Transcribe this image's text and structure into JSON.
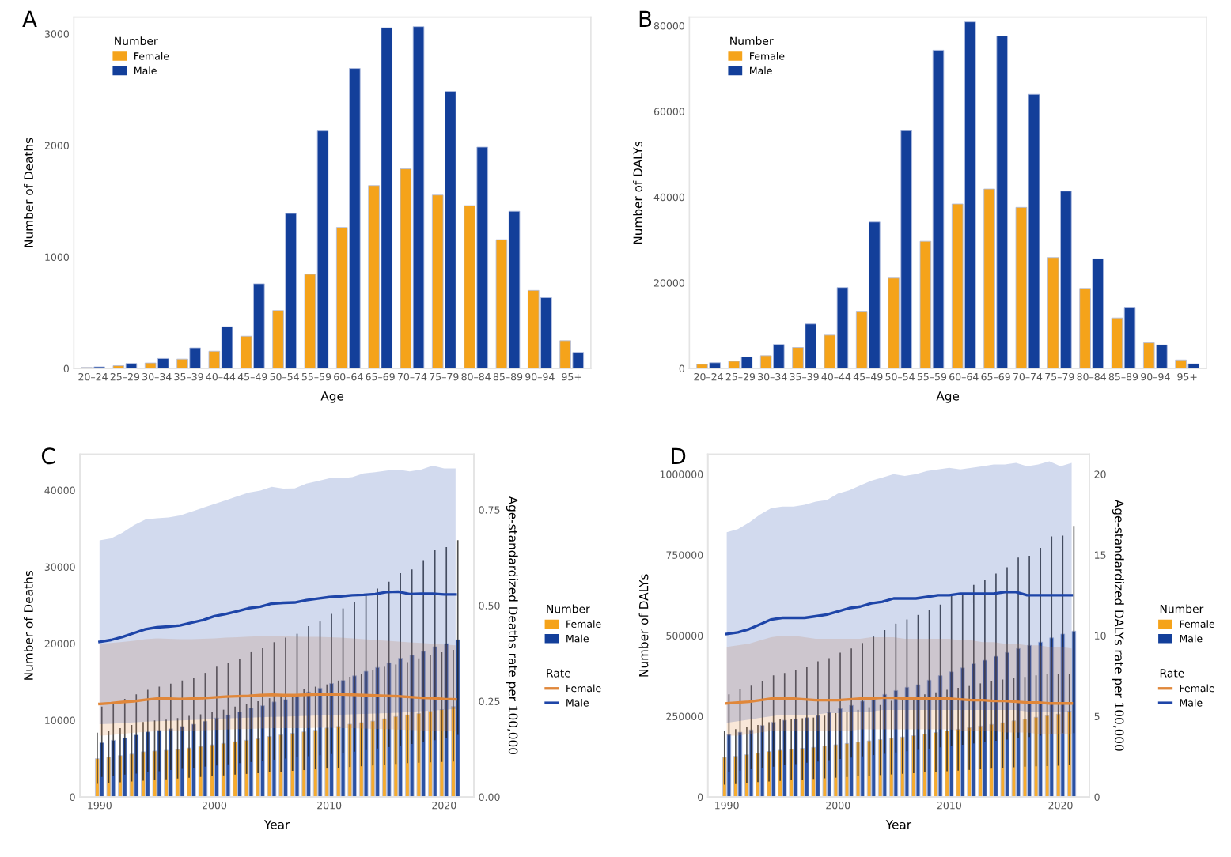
{
  "chart_data": [
    {
      "type": "bar",
      "title": "A",
      "xlabel": "Age",
      "ylabel": "Number of Deaths",
      "legend": "top left",
      "legend_title": "Number",
      "categories": [
        "20–24",
        "25–29",
        "30–34",
        "35–39",
        "40–44",
        "45–49",
        "50–54",
        "55–59",
        "60–64",
        "65–69",
        "70–74",
        "75–79",
        "80–84",
        "85–89",
        "90–94",
        "95+"
      ],
      "ylim": [
        0,
        3150
      ],
      "yticks": [
        0,
        1000,
        2000,
        3000
      ],
      "series": [
        {
          "name": "Female",
          "color": "#f5a31a",
          "values": [
            10,
            25,
            50,
            85,
            155,
            290,
            520,
            845,
            1265,
            1640,
            1790,
            1555,
            1460,
            1155,
            700,
            250
          ]
        },
        {
          "name": "Male",
          "color": "#133f9a",
          "values": [
            15,
            45,
            90,
            185,
            375,
            760,
            1390,
            2130,
            2690,
            3055,
            3065,
            2485,
            1985,
            1410,
            635,
            145
          ]
        }
      ]
    },
    {
      "type": "bar",
      "title": "B",
      "xlabel": "Age",
      "ylabel": "Number of DALYs",
      "legend": "top left",
      "legend_title": "Number",
      "categories": [
        "20–24",
        "25–29",
        "30–34",
        "35–39",
        "40–44",
        "45–49",
        "50–54",
        "55–59",
        "60–64",
        "65–69",
        "70–74",
        "75–79",
        "80–84",
        "85–89",
        "90–94",
        "95+"
      ],
      "ylim": [
        0,
        82000
      ],
      "yticks": [
        0,
        20000,
        40000,
        60000,
        80000
      ],
      "series": [
        {
          "name": "Female",
          "color": "#f5a31a",
          "values": [
            1000,
            1700,
            3000,
            4900,
            7800,
            13200,
            21100,
            29700,
            38400,
            41900,
            37600,
            25900,
            18700,
            11800,
            6000,
            2000
          ]
        },
        {
          "name": "Male",
          "color": "#133f9a",
          "values": [
            1350,
            2700,
            5600,
            10400,
            18900,
            34200,
            55500,
            74300,
            80900,
            77600,
            64000,
            41400,
            25600,
            14300,
            5500,
            1100
          ]
        }
      ]
    },
    {
      "type": "bar",
      "title": "C",
      "xlabel": "Year",
      "ylabel": "Number of Deaths",
      "y2label": "Age-standardized Deaths rate per 100,000",
      "legend": "right",
      "legend_title": "Number",
      "annotations": [
        "Rate"
      ],
      "x": [
        1990,
        1991,
        1992,
        1993,
        1994,
        1995,
        1996,
        1997,
        1998,
        1999,
        2000,
        2001,
        2002,
        2003,
        2004,
        2005,
        2006,
        2007,
        2008,
        2009,
        2010,
        2011,
        2012,
        2013,
        2014,
        2015,
        2016,
        2017,
        2018,
        2019,
        2020,
        2021
      ],
      "xlim": [
        1988.3,
        2022.6
      ],
      "xticks": [
        1990,
        2000,
        2010,
        2020
      ],
      "ylim": [
        0,
        44700
      ],
      "yticks": [
        0,
        10000,
        20000,
        30000,
        40000
      ],
      "y2lim": [
        0,
        0.895
      ],
      "y2ticks": [
        {
          "value": 0,
          "label": "0.00"
        },
        {
          "value": 0.25,
          "label": "0.25"
        },
        {
          "value": 0.5,
          "label": "0.50"
        },
        {
          "value": 0.75,
          "label": "0.75"
        }
      ],
      "series": [
        {
          "name": "Female",
          "color": "#f5a31a",
          "values": [
            5000,
            5200,
            5400,
            5600,
            5900,
            6000,
            6100,
            6200,
            6400,
            6600,
            6800,
            7000,
            7200,
            7400,
            7600,
            7900,
            8100,
            8300,
            8500,
            8700,
            9000,
            9200,
            9500,
            9700,
            9900,
            10200,
            10500,
            10700,
            10900,
            11200,
            11400,
            11800
          ],
          "errors": [
            [
              1800,
              8300
            ],
            [
              1900,
              8500
            ],
            [
              2000,
              8900
            ],
            [
              2100,
              9300
            ],
            [
              2200,
              9700
            ],
            [
              2300,
              9900
            ],
            [
              2400,
              10000
            ],
            [
              2500,
              10200
            ],
            [
              2600,
              10500
            ],
            [
              2700,
              10700
            ],
            [
              2800,
              11000
            ],
            [
              2900,
              11300
            ],
            [
              3000,
              11700
            ],
            [
              3100,
              12000
            ],
            [
              3200,
              12400
            ],
            [
              3300,
              12800
            ],
            [
              3400,
              13100
            ],
            [
              3500,
              13300
            ],
            [
              3600,
              14000
            ],
            [
              3700,
              14300
            ],
            [
              3800,
              14600
            ],
            [
              3900,
              15100
            ],
            [
              4000,
              15600
            ],
            [
              4100,
              16000
            ],
            [
              4200,
              16500
            ],
            [
              4300,
              16900
            ],
            [
              4400,
              17200
            ],
            [
              4500,
              17500
            ],
            [
              4550,
              18000
            ],
            [
              4600,
              18400
            ],
            [
              4650,
              18800
            ],
            [
              4700,
              19100
            ]
          ]
        },
        {
          "name": "Male",
          "color": "#133f9a",
          "values": [
            7100,
            7400,
            7700,
            8100,
            8500,
            8700,
            8900,
            9200,
            9500,
            9900,
            10300,
            10700,
            11100,
            11600,
            11900,
            12400,
            12700,
            13200,
            13700,
            14200,
            14800,
            15200,
            15800,
            16400,
            16900,
            17500,
            18100,
            18500,
            19000,
            19600,
            20000,
            20500
          ],
          "errors": [
            [
              2700,
              11700
            ],
            [
              2850,
              12200
            ],
            [
              3000,
              12700
            ],
            [
              3150,
              13300
            ],
            [
              3300,
              13900
            ],
            [
              3450,
              14300
            ],
            [
              3600,
              14700
            ],
            [
              3750,
              15100
            ],
            [
              3900,
              15500
            ],
            [
              4050,
              16100
            ],
            [
              4200,
              16900
            ],
            [
              4350,
              17400
            ],
            [
              4500,
              17900
            ],
            [
              4650,
              18800
            ],
            [
              4800,
              19300
            ],
            [
              4950,
              20100
            ],
            [
              5100,
              20700
            ],
            [
              5250,
              21200
            ],
            [
              5400,
              22200
            ],
            [
              5550,
              22800
            ],
            [
              5700,
              23800
            ],
            [
              5850,
              24500
            ],
            [
              6000,
              25300
            ],
            [
              6200,
              26300
            ],
            [
              6400,
              27100
            ],
            [
              6600,
              28000
            ],
            [
              6800,
              29100
            ],
            [
              7000,
              29600
            ],
            [
              7200,
              30800
            ],
            [
              7500,
              32100
            ],
            [
              7800,
              32500
            ],
            [
              8200,
              33400
            ]
          ]
        },
        {
          "name": "Female",
          "type": "line",
          "axis": "y2",
          "color": "#e0873a",
          "values": [
            0.243,
            0.245,
            0.248,
            0.25,
            0.254,
            0.257,
            0.257,
            0.256,
            0.257,
            0.258,
            0.26,
            0.262,
            0.263,
            0.264,
            0.266,
            0.267,
            0.266,
            0.266,
            0.267,
            0.268,
            0.268,
            0.268,
            0.267,
            0.266,
            0.265,
            0.264,
            0.263,
            0.261,
            0.259,
            0.258,
            0.256,
            0.255
          ],
          "lower": [
            0.16,
            0.162,
            0.165,
            0.168,
            0.17,
            0.172,
            0.172,
            0.172,
            0.173,
            0.174,
            0.175,
            0.176,
            0.177,
            0.178,
            0.179,
            0.18,
            0.18,
            0.18,
            0.18,
            0.181,
            0.181,
            0.18,
            0.18,
            0.179,
            0.178,
            0.177,
            0.176,
            0.175,
            0.174,
            0.173,
            0.172,
            0.171
          ],
          "upper": [
            0.4,
            0.402,
            0.405,
            0.408,
            0.412,
            0.414,
            0.413,
            0.412,
            0.412,
            0.413,
            0.414,
            0.416,
            0.417,
            0.419,
            0.42,
            0.421,
            0.42,
            0.419,
            0.418,
            0.418,
            0.417,
            0.416,
            0.414,
            0.412,
            0.41,
            0.408,
            0.406,
            0.404,
            0.402,
            0.4,
            0.398,
            0.396
          ]
        },
        {
          "name": "Male",
          "type": "line",
          "axis": "y2",
          "color": "#1e45a8",
          "values": [
            0.405,
            0.41,
            0.418,
            0.428,
            0.438,
            0.443,
            0.445,
            0.448,
            0.455,
            0.462,
            0.472,
            0.478,
            0.485,
            0.493,
            0.497,
            0.505,
            0.507,
            0.508,
            0.514,
            0.518,
            0.522,
            0.524,
            0.527,
            0.528,
            0.53,
            0.535,
            0.536,
            0.53,
            0.531,
            0.531,
            0.529,
            0.529
          ],
          "lower": [
            0.19,
            0.191,
            0.193,
            0.195,
            0.197,
            0.198,
            0.199,
            0.2,
            0.201,
            0.202,
            0.203,
            0.205,
            0.206,
            0.207,
            0.208,
            0.209,
            0.21,
            0.211,
            0.212,
            0.213,
            0.214,
            0.215,
            0.216,
            0.217,
            0.218,
            0.219,
            0.22,
            0.222,
            0.224,
            0.226,
            0.228,
            0.23
          ],
          "upper": [
            0.67,
            0.675,
            0.69,
            0.71,
            0.725,
            0.728,
            0.73,
            0.735,
            0.745,
            0.755,
            0.765,
            0.775,
            0.785,
            0.795,
            0.8,
            0.81,
            0.805,
            0.806,
            0.818,
            0.825,
            0.832,
            0.832,
            0.835,
            0.845,
            0.848,
            0.852,
            0.855,
            0.85,
            0.855,
            0.865,
            0.858,
            0.858
          ]
        }
      ]
    },
    {
      "type": "bar",
      "title": "D",
      "xlabel": "Year",
      "ylabel": "Number of DALYs",
      "y2label": "Age-standardized DALYs rate per 100,000",
      "legend": "right",
      "legend_title": "Number",
      "annotations": [
        "Rate"
      ],
      "x": [
        1990,
        1991,
        1992,
        1993,
        1994,
        1995,
        1996,
        1997,
        1998,
        1999,
        2000,
        2001,
        2002,
        2003,
        2004,
        2005,
        2006,
        2007,
        2008,
        2009,
        2010,
        2011,
        2012,
        2013,
        2014,
        2015,
        2016,
        2017,
        2018,
        2019,
        2020,
        2021
      ],
      "xlim": [
        1988.3,
        2022.6
      ],
      "xticks": [
        1990,
        2000,
        2010,
        2020
      ],
      "ylim": [
        0,
        1062000
      ],
      "yticks": [
        0,
        250000,
        500000,
        750000,
        1000000
      ],
      "y2lim": [
        0,
        21.24
      ],
      "y2ticks": [
        0,
        5,
        10,
        15,
        20
      ],
      "series": [
        {
          "name": "Female",
          "color": "#f5a31a",
          "values": [
            123000,
            126000,
            131000,
            136000,
            141000,
            145000,
            148000,
            151000,
            154000,
            158000,
            162000,
            166000,
            170000,
            174000,
            178000,
            182000,
            186000,
            190000,
            195000,
            200000,
            205000,
            210000,
            215000,
            220000,
            225000,
            230000,
            236000,
            241000,
            247000,
            252000,
            257000,
            266000
          ],
          "errors": [
            [
              40000,
              202000
            ],
            [
              42000,
              208000
            ],
            [
              45000,
              214000
            ],
            [
              48000,
              221000
            ],
            [
              50000,
              230000
            ],
            [
              52000,
              238000
            ],
            [
              54000,
              241000
            ],
            [
              56000,
              242000
            ],
            [
              58000,
              244000
            ],
            [
              60000,
              250000
            ],
            [
              62000,
              258000
            ],
            [
              64000,
              262000
            ],
            [
              66000,
              268000
            ],
            [
              68000,
              276000
            ],
            [
              70000,
              283000
            ],
            [
              72000,
              296000
            ],
            [
              74000,
              302000
            ],
            [
              76000,
              309000
            ],
            [
              78000,
              316000
            ],
            [
              80000,
              322000
            ],
            [
              82000,
              330000
            ],
            [
              84000,
              336000
            ],
            [
              86000,
              342000
            ],
            [
              88000,
              350000
            ],
            [
              90000,
              356000
            ],
            [
              92000,
              362000
            ],
            [
              94000,
              367000
            ],
            [
              96000,
              370000
            ],
            [
              97000,
              375000
            ],
            [
              98000,
              378000
            ],
            [
              99000,
              380000
            ],
            [
              100000,
              378000
            ]
          ]
        },
        {
          "name": "Male",
          "color": "#133f9a",
          "values": [
            194000,
            201000,
            208000,
            222000,
            232000,
            238000,
            242000,
            246000,
            253000,
            262000,
            274000,
            284000,
            297000,
            307000,
            318000,
            330000,
            340000,
            348000,
            362000,
            376000,
            388000,
            400000,
            413000,
            424000,
            436000,
            448000,
            460000,
            470000,
            480000,
            493000,
            505000,
            514000
          ],
          "errors": [
            [
              80000,
              316000
            ],
            [
              84000,
              332000
            ],
            [
              88000,
              343000
            ],
            [
              92000,
              358000
            ],
            [
              96000,
              375000
            ],
            [
              100000,
              382000
            ],
            [
              104000,
              390000
            ],
            [
              108000,
              400000
            ],
            [
              112000,
              418000
            ],
            [
              116000,
              428000
            ],
            [
              120000,
              445000
            ],
            [
              124000,
              458000
            ],
            [
              128000,
              475000
            ],
            [
              132000,
              495000
            ],
            [
              136000,
              515000
            ],
            [
              140000,
              535000
            ],
            [
              144000,
              548000
            ],
            [
              148000,
              562000
            ],
            [
              152000,
              577000
            ],
            [
              156000,
              594000
            ],
            [
              160000,
              622000
            ],
            [
              164000,
              630000
            ],
            [
              168000,
              655000
            ],
            [
              172000,
              670000
            ],
            [
              176000,
              690000
            ],
            [
              180000,
              710000
            ],
            [
              184000,
              740000
            ],
            [
              188000,
              745000
            ],
            [
              192000,
              770000
            ],
            [
              196000,
              805000
            ],
            [
              200000,
              808000
            ],
            [
              200000,
              838000
            ]
          ]
        },
        {
          "name": "Female",
          "type": "line",
          "axis": "y2",
          "color": "#e0873a",
          "values": [
            5.8,
            5.85,
            5.9,
            6.0,
            6.1,
            6.1,
            6.1,
            6.05,
            6.0,
            6.0,
            6.0,
            6.05,
            6.1,
            6.1,
            6.15,
            6.15,
            6.1,
            6.1,
            6.1,
            6.1,
            6.1,
            6.05,
            6.0,
            6.0,
            5.95,
            5.95,
            5.9,
            5.85,
            5.85,
            5.8,
            5.8,
            5.8
          ],
          "lower": [
            3.8,
            3.8,
            3.9,
            4.0,
            4.1,
            4.1,
            4.1,
            4.1,
            4.1,
            4.1,
            4.1,
            4.1,
            4.2,
            4.2,
            4.2,
            4.2,
            4.2,
            4.2,
            4.2,
            4.2,
            4.2,
            4.1,
            4.1,
            4.1,
            4.1,
            4.0,
            4.0,
            4.0,
            3.9,
            3.9,
            3.9,
            3.9
          ],
          "upper": [
            9.3,
            9.4,
            9.5,
            9.7,
            9.9,
            10.0,
            10.0,
            9.9,
            9.8,
            9.8,
            9.8,
            9.8,
            9.8,
            9.9,
            9.9,
            9.9,
            9.8,
            9.8,
            9.8,
            9.8,
            9.8,
            9.7,
            9.7,
            9.6,
            9.6,
            9.5,
            9.5,
            9.4,
            9.4,
            9.3,
            9.3,
            9.2
          ]
        },
        {
          "name": "Male",
          "type": "line",
          "axis": "y2",
          "color": "#1e45a8",
          "values": [
            10.1,
            10.2,
            10.4,
            10.7,
            11.0,
            11.1,
            11.1,
            11.1,
            11.2,
            11.3,
            11.5,
            11.7,
            11.8,
            12.0,
            12.1,
            12.3,
            12.3,
            12.3,
            12.4,
            12.5,
            12.5,
            12.6,
            12.6,
            12.6,
            12.6,
            12.7,
            12.7,
            12.5,
            12.5,
            12.5,
            12.5,
            12.5
          ],
          "lower": [
            4.6,
            4.7,
            4.8,
            4.9,
            5.0,
            5.1,
            5.1,
            5.1,
            5.1,
            5.2,
            5.2,
            5.3,
            5.3,
            5.3,
            5.4,
            5.4,
            5.4,
            5.4,
            5.4,
            5.4,
            5.4,
            5.4,
            5.4,
            5.4,
            5.4,
            5.4,
            5.4,
            5.3,
            5.3,
            5.3,
            5.3,
            5.3
          ],
          "upper": [
            16.4,
            16.6,
            17.0,
            17.5,
            17.9,
            18.0,
            18.0,
            18.1,
            18.3,
            18.4,
            18.8,
            19.0,
            19.3,
            19.6,
            19.8,
            20.0,
            19.9,
            20.0,
            20.2,
            20.3,
            20.4,
            20.3,
            20.4,
            20.5,
            20.6,
            20.6,
            20.7,
            20.5,
            20.6,
            20.8,
            20.5,
            20.7
          ]
        }
      ]
    }
  ]
}
